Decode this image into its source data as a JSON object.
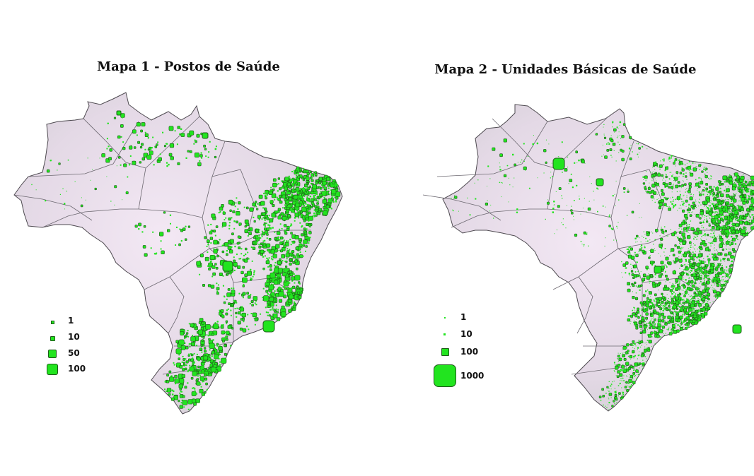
{
  "maps": [
    {
      "id": "map1",
      "title": "Mapa 1 - Postos de Saúde",
      "legend": [
        {
          "label": "1"
        },
        {
          "label": "10"
        },
        {
          "label": "50"
        },
        {
          "label": "100"
        }
      ]
    },
    {
      "id": "map2",
      "title": "Mapa 2 - Unidades Básicas de Saúde",
      "legend": [
        {
          "label": "1"
        },
        {
          "label": "10"
        },
        {
          "label": "100"
        },
        {
          "label": "1000"
        }
      ]
    }
  ],
  "colors": {
    "symbol_fill": "#22e41f",
    "symbol_stroke": "#1f5a1a",
    "land": "#e6dce8",
    "border": "#5a5a5a"
  }
}
